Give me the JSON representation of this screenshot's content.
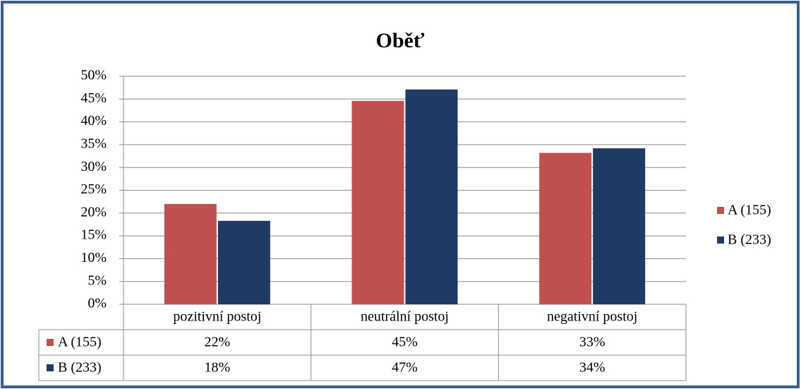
{
  "chart_data": {
    "type": "bar",
    "title": "Oběť",
    "categories": [
      "pozitivní postoj",
      "neutrální postoj",
      "negativní postoj"
    ],
    "series": [
      {
        "name": "A (155)",
        "color": "#c0504d",
        "values": [
          22,
          44.6,
          33.2
        ],
        "value_labels": [
          "22%",
          "45%",
          "33%"
        ]
      },
      {
        "name": "B (233)",
        "color": "#1f3b63",
        "values": [
          18.3,
          47.1,
          34.2
        ],
        "value_labels": [
          "18%",
          "47%",
          "34%"
        ]
      }
    ],
    "ylim": [
      0,
      50
    ],
    "yticks": [
      {
        "value": 0,
        "label": "0%"
      },
      {
        "value": 5,
        "label": "5%"
      },
      {
        "value": 10,
        "label": "10%"
      },
      {
        "value": 15,
        "label": "15%"
      },
      {
        "value": 20,
        "label": "20%"
      },
      {
        "value": 25,
        "label": "25%"
      },
      {
        "value": 30,
        "label": "30%"
      },
      {
        "value": 35,
        "label": "35%"
      },
      {
        "value": 40,
        "label": "40%"
      },
      {
        "value": 45,
        "label": "45%"
      },
      {
        "value": 50,
        "label": "50%"
      }
    ],
    "grid": true,
    "legend": "right"
  }
}
